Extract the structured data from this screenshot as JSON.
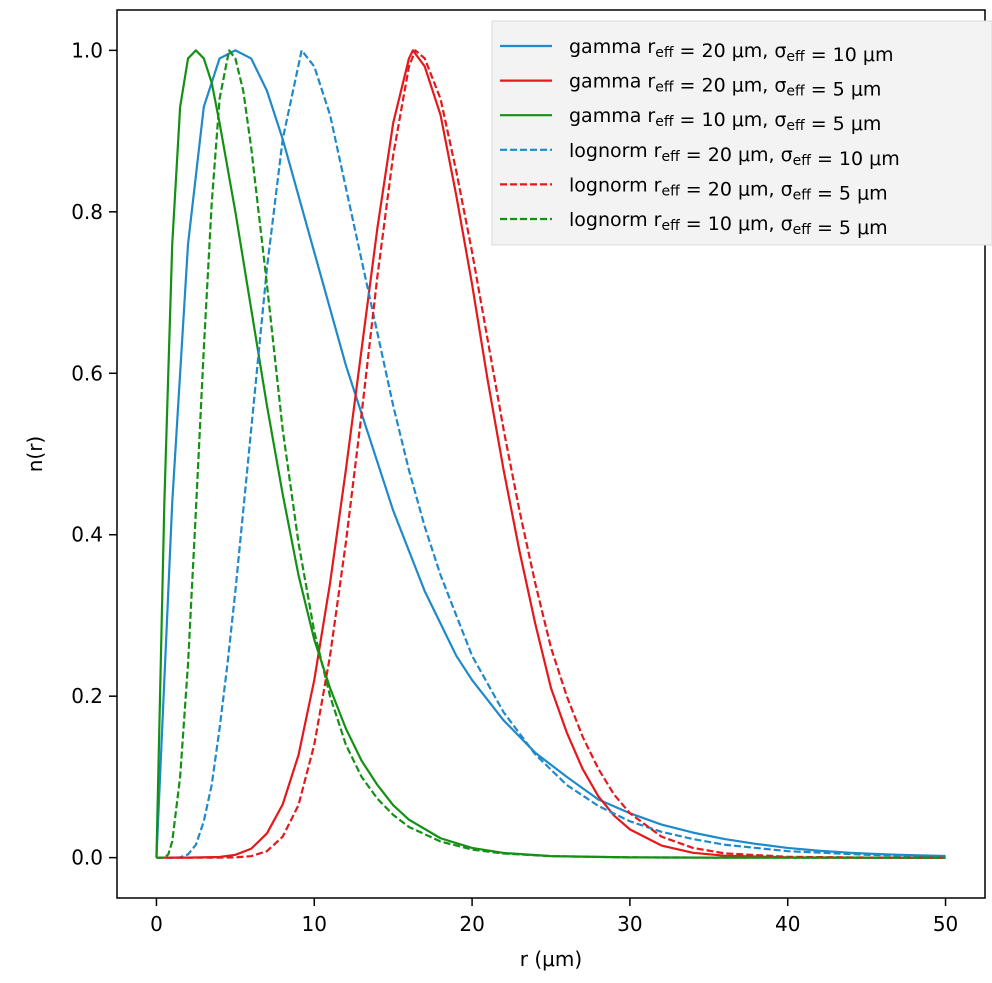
{
  "chart_data": {
    "type": "line",
    "xlabel": "r (μm)",
    "ylabel": "n(r)",
    "xlim": [
      -2.5,
      52.5
    ],
    "ylim": [
      -0.05,
      1.05
    ],
    "xticks": [
      "0",
      "10",
      "20",
      "30",
      "40",
      "50"
    ],
    "yticks": [
      "0.0",
      "0.2",
      "0.4",
      "0.6",
      "0.8",
      "1.0"
    ],
    "grid": false,
    "legend_position": "top-right",
    "series": [
      {
        "name": "gamma r_eff = 20 μm, σ_eff = 10 μm",
        "legend": {
          "main": "gamma r",
          "sub": "eff",
          "mid": " = 20 μm, σ",
          "sub2": "eff",
          "tail": " = 10 μm"
        },
        "color": "#1f8ac9",
        "dash": "solid",
        "x": [
          0,
          1,
          2,
          3,
          4,
          5,
          6,
          7,
          8,
          9,
          10,
          11,
          12,
          13,
          14,
          15,
          16,
          17,
          18,
          19,
          20,
          22,
          24,
          26,
          28,
          30,
          32,
          34,
          36,
          38,
          40,
          42,
          44,
          46,
          48,
          50
        ],
        "y": [
          0,
          0.44,
          0.76,
          0.93,
          0.99,
          1.0,
          0.99,
          0.95,
          0.89,
          0.82,
          0.75,
          0.68,
          0.61,
          0.55,
          0.49,
          0.43,
          0.38,
          0.33,
          0.29,
          0.25,
          0.22,
          0.17,
          0.13,
          0.1,
          0.072,
          0.055,
          0.041,
          0.031,
          0.023,
          0.017,
          0.012,
          0.0085,
          0.006,
          0.0042,
          0.003,
          0.002
        ]
      },
      {
        "name": "gamma r_eff = 20 μm, σ_eff = 5 μm",
        "legend": {
          "main": "gamma r",
          "sub": "eff",
          "mid": " = 20 μm, σ",
          "sub2": "eff",
          "tail": " = 5 μm"
        },
        "color": "#e3191c",
        "dash": "solid",
        "x": [
          0,
          2,
          4,
          5,
          6,
          7,
          8,
          9,
          10,
          11,
          12,
          13,
          14,
          15,
          16,
          16.25,
          17,
          18,
          19,
          20,
          21,
          22,
          23,
          24,
          25,
          26,
          27,
          28,
          29,
          30,
          32,
          34,
          36,
          40,
          45,
          50
        ],
        "y": [
          0,
          0,
          0.0008,
          0.0035,
          0.011,
          0.03,
          0.066,
          0.127,
          0.22,
          0.34,
          0.48,
          0.63,
          0.78,
          0.91,
          0.99,
          1.0,
          0.98,
          0.92,
          0.82,
          0.71,
          0.59,
          0.48,
          0.38,
          0.29,
          0.21,
          0.155,
          0.11,
          0.076,
          0.052,
          0.035,
          0.015,
          0.006,
          0.0024,
          0.0003,
          2e-05,
          0
        ]
      },
      {
        "name": "gamma r_eff = 10 μm, σ_eff = 5 μm",
        "legend": {
          "main": "gamma r",
          "sub": "eff",
          "mid": " = 10 μm, σ",
          "sub2": "eff",
          "tail": " = 5 μm"
        },
        "color": "#149114",
        "dash": "solid",
        "x": [
          0,
          0.5,
          1,
          1.5,
          2,
          2.5,
          3,
          3.5,
          4,
          5,
          6,
          7,
          8,
          9,
          10,
          11,
          12,
          13,
          14,
          15,
          16,
          18,
          20,
          22,
          25,
          30,
          35,
          40,
          50
        ],
        "y": [
          0,
          0.44,
          0.76,
          0.93,
          0.99,
          1.0,
          0.99,
          0.96,
          0.91,
          0.8,
          0.68,
          0.56,
          0.45,
          0.35,
          0.27,
          0.21,
          0.16,
          0.12,
          0.09,
          0.065,
          0.047,
          0.024,
          0.012,
          0.0058,
          0.0019,
          0.0003,
          4e-05,
          0,
          0
        ]
      },
      {
        "name": "lognorm r_eff = 20 μm, σ_eff = 10 μm",
        "legend": {
          "main": "lognorm r",
          "sub": "eff",
          "mid": " = 20 μm, σ",
          "sub2": "eff",
          "tail": " = 10 μm"
        },
        "color": "#1f8ac9",
        "dash": "dashed",
        "x": [
          0,
          1,
          1.5,
          2,
          2.5,
          3,
          3.5,
          4,
          4.5,
          5,
          6,
          7,
          8,
          9.2,
          10,
          11,
          12,
          13,
          14,
          15,
          16,
          17,
          18,
          19,
          20,
          22,
          24,
          26,
          28,
          30,
          32,
          34,
          36,
          40,
          45,
          50
        ],
        "y": [
          0,
          0,
          0.0004,
          0.004,
          0.016,
          0.045,
          0.09,
          0.16,
          0.24,
          0.33,
          0.53,
          0.73,
          0.89,
          1.0,
          0.98,
          0.92,
          0.83,
          0.74,
          0.65,
          0.56,
          0.48,
          0.41,
          0.35,
          0.3,
          0.25,
          0.18,
          0.128,
          0.09,
          0.064,
          0.045,
          0.032,
          0.023,
          0.016,
          0.008,
          0.0035,
          0.0015
        ]
      },
      {
        "name": "lognorm r_eff = 20 μm, σ_eff = 5 μm",
        "legend": {
          "main": "lognorm r",
          "sub": "eff",
          "mid": " = 20 μm, σ",
          "sub2": "eff",
          "tail": " = 5 μm"
        },
        "color": "#e3191c",
        "dash": "dashed",
        "x": [
          0,
          4,
          5,
          6,
          7,
          8,
          9,
          10,
          11,
          12,
          13,
          14,
          15,
          16,
          16.4,
          17,
          18,
          19,
          20,
          21,
          22,
          23,
          24,
          25,
          26,
          27,
          28,
          29,
          30,
          32,
          34,
          36,
          40,
          45,
          50
        ],
        "y": [
          0,
          0,
          0.0003,
          0.0018,
          0.008,
          0.026,
          0.065,
          0.14,
          0.25,
          0.39,
          0.55,
          0.72,
          0.87,
          0.98,
          1.0,
          0.99,
          0.94,
          0.85,
          0.75,
          0.64,
          0.53,
          0.43,
          0.34,
          0.26,
          0.2,
          0.15,
          0.11,
          0.078,
          0.055,
          0.026,
          0.012,
          0.0053,
          0.001,
          0.0001,
          0
        ]
      },
      {
        "name": "lognorm r_eff = 10 μm, σ_eff = 5 μm",
        "legend": {
          "main": "lognorm r",
          "sub": "eff",
          "mid": " = 10 μm, σ",
          "sub2": "eff",
          "tail": " = 5 μm"
        },
        "color": "#149114",
        "dash": "dashed",
        "x": [
          0,
          0.5,
          0.75,
          1,
          1.5,
          2,
          2.5,
          3,
          3.5,
          4,
          4.6,
          5,
          5.5,
          6,
          7,
          8,
          9,
          10,
          11,
          12,
          13,
          14,
          15,
          16,
          18,
          20,
          22,
          25,
          30,
          35,
          40,
          50
        ],
        "y": [
          0,
          0,
          0.004,
          0.02,
          0.1,
          0.24,
          0.43,
          0.63,
          0.81,
          0.94,
          1.0,
          0.99,
          0.95,
          0.88,
          0.71,
          0.53,
          0.39,
          0.28,
          0.2,
          0.14,
          0.1,
          0.073,
          0.053,
          0.038,
          0.02,
          0.01,
          0.0051,
          0.0018,
          0.0003,
          5e-05,
          0,
          0
        ]
      }
    ]
  }
}
